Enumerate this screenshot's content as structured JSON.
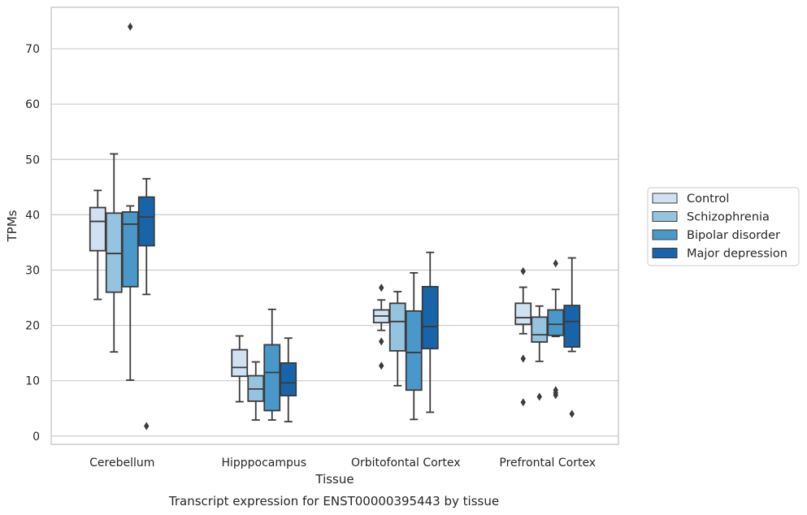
{
  "caption": "Transcript expression for ENST00000395443 by tissue",
  "chart_data": {
    "type": "box",
    "xlabel": "Tissue",
    "ylabel": "TPMs",
    "ylim": [
      -1.5,
      77.5
    ],
    "yticks": [
      0,
      10,
      20,
      30,
      40,
      50,
      60,
      70
    ],
    "grid": true,
    "legend_position": "right",
    "categories": [
      "Cerebellum",
      "Hipppocampus",
      "Orbitofontal Cortex",
      "Prefrontal Cortex"
    ],
    "series": [
      {
        "name": "Control",
        "color": "#d0e1f2",
        "boxes": [
          {
            "whislo": 24.7,
            "q1": 33.5,
            "med": 38.8,
            "q3": 41.3,
            "whishi": 44.4,
            "fliers": []
          },
          {
            "whislo": 6.2,
            "q1": 10.8,
            "med": 12.4,
            "q3": 15.6,
            "whishi": 18.1,
            "fliers": []
          },
          {
            "whislo": 19.1,
            "q1": 20.5,
            "med": 21.7,
            "q3": 22.8,
            "whishi": 24.6,
            "fliers": [
              26.8,
              17.1,
              12.7
            ]
          },
          {
            "whislo": 18.5,
            "q1": 20.2,
            "med": 21.4,
            "q3": 24.0,
            "whishi": 26.9,
            "fliers": [
              29.8,
              14.0,
              6.1
            ]
          }
        ]
      },
      {
        "name": "Schizophrenia",
        "color": "#94c4df",
        "boxes": [
          {
            "whislo": 15.2,
            "q1": 26.0,
            "med": 33.0,
            "q3": 40.3,
            "whishi": 51.0,
            "fliers": []
          },
          {
            "whislo": 2.9,
            "q1": 6.3,
            "med": 8.5,
            "q3": 10.9,
            "whishi": 13.4,
            "fliers": []
          },
          {
            "whislo": 9.1,
            "q1": 15.4,
            "med": 20.7,
            "q3": 24.0,
            "whishi": 26.1,
            "fliers": []
          },
          {
            "whislo": 13.5,
            "q1": 17.0,
            "med": 18.3,
            "q3": 21.5,
            "whishi": 23.5,
            "fliers": [
              7.1
            ]
          }
        ]
      },
      {
        "name": "Bipolar disorder",
        "color": "#4a98c9",
        "boxes": [
          {
            "whislo": 10.1,
            "q1": 27.0,
            "med": 38.3,
            "q3": 40.5,
            "whishi": 41.6,
            "fliers": [
              74.0
            ]
          },
          {
            "whislo": 2.9,
            "q1": 4.6,
            "med": 11.5,
            "q3": 16.5,
            "whishi": 22.9,
            "fliers": []
          },
          {
            "whislo": 3.0,
            "q1": 8.3,
            "med": 15.1,
            "q3": 22.6,
            "whishi": 29.5,
            "fliers": []
          },
          {
            "whislo": 18.0,
            "q1": 18.2,
            "med": 20.2,
            "q3": 22.8,
            "whishi": 26.5,
            "fliers": [
              31.2,
              8.3,
              7.8,
              7.4
            ]
          }
        ]
      },
      {
        "name": "Major depression",
        "color": "#1764ab",
        "boxes": [
          {
            "whislo": 25.6,
            "q1": 34.4,
            "med": 39.6,
            "q3": 43.2,
            "whishi": 46.5,
            "fliers": [
              1.8
            ]
          },
          {
            "whislo": 2.6,
            "q1": 7.3,
            "med": 9.6,
            "q3": 13.2,
            "whishi": 17.7,
            "fliers": []
          },
          {
            "whislo": 4.3,
            "q1": 15.8,
            "med": 19.8,
            "q3": 27.0,
            "whishi": 33.2,
            "fliers": []
          },
          {
            "whislo": 15.3,
            "q1": 16.1,
            "med": 20.7,
            "q3": 23.6,
            "whishi": 32.2,
            "fliers": [
              4.0
            ]
          }
        ]
      }
    ]
  }
}
